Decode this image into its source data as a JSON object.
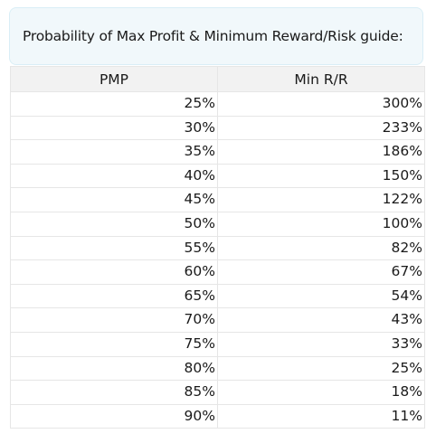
{
  "header": {
    "title": "Probability of Max Profit & Minimum Reward/Risk guide:"
  },
  "table": {
    "columns": [
      "PMP",
      "Min R/R"
    ],
    "rows": [
      {
        "pmp": "25%",
        "min_rr": "300%"
      },
      {
        "pmp": "30%",
        "min_rr": "233%"
      },
      {
        "pmp": "35%",
        "min_rr": "186%"
      },
      {
        "pmp": "40%",
        "min_rr": "150%"
      },
      {
        "pmp": "45%",
        "min_rr": "122%"
      },
      {
        "pmp": "50%",
        "min_rr": "100%"
      },
      {
        "pmp": "55%",
        "min_rr": "82%"
      },
      {
        "pmp": "60%",
        "min_rr": "67%"
      },
      {
        "pmp": "65%",
        "min_rr": "54%"
      },
      {
        "pmp": "70%",
        "min_rr": "43%"
      },
      {
        "pmp": "75%",
        "min_rr": "33%"
      },
      {
        "pmp": "80%",
        "min_rr": "25%"
      },
      {
        "pmp": "85%",
        "min_rr": "18%"
      },
      {
        "pmp": "90%",
        "min_rr": "11%"
      }
    ]
  }
}
